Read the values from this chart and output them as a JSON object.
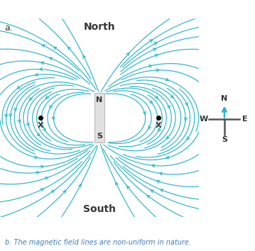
{
  "title_a": "a.",
  "north_label": "North",
  "south_label": "South",
  "magnet_N": "N",
  "magnet_S": "S",
  "x_label": "X",
  "compass_N": "N",
  "compass_S": "S",
  "compass_W": "W",
  "compass_E": "E",
  "caption": "b. The magnetic field lines are non-uniform in nature.",
  "field_color": "#2ab5c8",
  "text_color": "#333333",
  "caption_color": "#3a7fc1",
  "background": "#ffffff",
  "magnet_color": "#e0e0e0",
  "magnet_outline": "#bbbbbb",
  "compass_arrow_color": "#2ab5c8",
  "compass_line_color": "#555555"
}
